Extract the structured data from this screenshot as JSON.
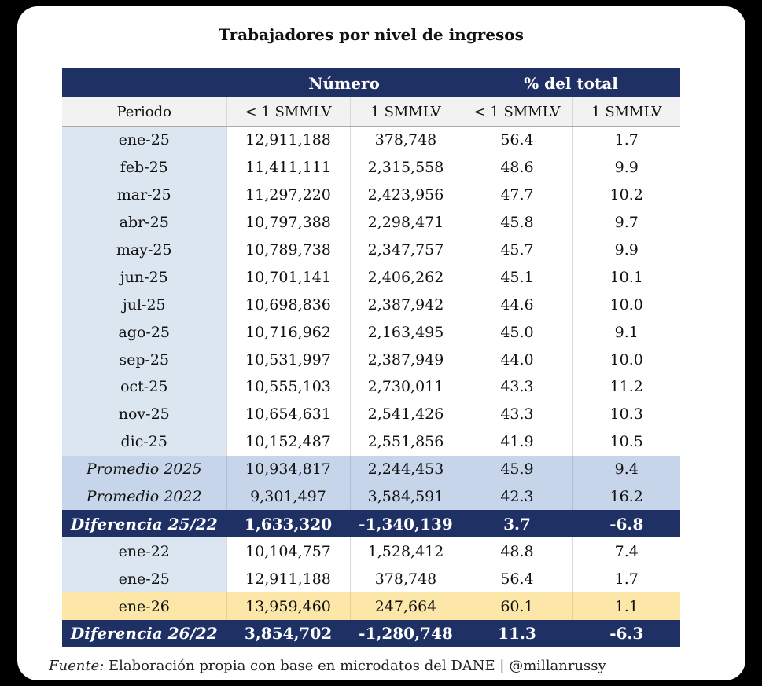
{
  "title": "Trabajadores por nivel de ingresos",
  "header": {
    "group_numero": "Número",
    "group_pct": "% del total",
    "col_periodo": "Periodo",
    "col_menos1": "< 1 SMMLV",
    "col_1": "1 SMMLV",
    "col_pct_menos1": "< 1 SMMLV",
    "col_pct_1": "1 SMMLV"
  },
  "rows": [
    {
      "periodo": "ene-25",
      "n_menos1": "12,911,188",
      "n_1": "378,748",
      "p_menos1": "56.4",
      "p_1": "1.7"
    },
    {
      "periodo": "feb-25",
      "n_menos1": "11,411,111",
      "n_1": "2,315,558",
      "p_menos1": "48.6",
      "p_1": "9.9"
    },
    {
      "periodo": "mar-25",
      "n_menos1": "11,297,220",
      "n_1": "2,423,956",
      "p_menos1": "47.7",
      "p_1": "10.2"
    },
    {
      "periodo": "abr-25",
      "n_menos1": "10,797,388",
      "n_1": "2,298,471",
      "p_menos1": "45.8",
      "p_1": "9.7"
    },
    {
      "periodo": "may-25",
      "n_menos1": "10,789,738",
      "n_1": "2,347,757",
      "p_menos1": "45.7",
      "p_1": "9.9"
    },
    {
      "periodo": "jun-25",
      "n_menos1": "10,701,141",
      "n_1": "2,406,262",
      "p_menos1": "45.1",
      "p_1": "10.1"
    },
    {
      "periodo": "jul-25",
      "n_menos1": "10,698,836",
      "n_1": "2,387,942",
      "p_menos1": "44.6",
      "p_1": "10.0"
    },
    {
      "periodo": "ago-25",
      "n_menos1": "10,716,962",
      "n_1": "2,163,495",
      "p_menos1": "45.0",
      "p_1": "9.1"
    },
    {
      "periodo": "sep-25",
      "n_menos1": "10,531,997",
      "n_1": "2,387,949",
      "p_menos1": "44.0",
      "p_1": "10.0"
    },
    {
      "periodo": "oct-25",
      "n_menos1": "10,555,103",
      "n_1": "2,730,011",
      "p_menos1": "43.3",
      "p_1": "11.2"
    },
    {
      "periodo": "nov-25",
      "n_menos1": "10,654,631",
      "n_1": "2,541,426",
      "p_menos1": "43.3",
      "p_1": "10.3"
    },
    {
      "periodo": "dic-25",
      "n_menos1": "10,152,487",
      "n_1": "2,551,856",
      "p_menos1": "41.9",
      "p_1": "10.5"
    }
  ],
  "promedio_2025": {
    "periodo": "Promedio 2025",
    "n_menos1": "10,934,817",
    "n_1": "2,244,453",
    "p_menos1": "45.9",
    "p_1": "9.4"
  },
  "promedio_2022": {
    "periodo": "Promedio 2022",
    "n_menos1": "9,301,497",
    "n_1": "3,584,591",
    "p_menos1": "42.3",
    "p_1": "16.2"
  },
  "diferencia_25_22": {
    "periodo": "Diferencia 25/22",
    "n_menos1": "1,633,320",
    "n_1": "-1,340,139",
    "p_menos1": "3.7",
    "p_1": "-6.8"
  },
  "rows_ene": [
    {
      "periodo": "ene-22",
      "n_menos1": "10,104,757",
      "n_1": "1,528,412",
      "p_menos1": "48.8",
      "p_1": "7.4"
    },
    {
      "periodo": "ene-25",
      "n_menos1": "12,911,188",
      "n_1": "378,748",
      "p_menos1": "56.4",
      "p_1": "1.7"
    }
  ],
  "ene_26": {
    "periodo": "ene-26",
    "n_menos1": "13,959,460",
    "n_1": "247,664",
    "p_menos1": "60.1",
    "p_1": "1.1"
  },
  "diferencia_26_22": {
    "periodo": "Diferencia 26/22",
    "n_menos1": "3,854,702",
    "n_1": "-1,280,748",
    "p_menos1": "11.3",
    "p_1": "-6.3"
  },
  "footer": {
    "label": "Fuente:",
    "text": "Elaboración propia con base en microdatos del DANE | @millanrussy"
  },
  "colors": {
    "navy": "#1f3064",
    "light_blue": "#dce6f1",
    "avg_blue": "#c6d5ea",
    "highlight": "#fce7a8"
  }
}
